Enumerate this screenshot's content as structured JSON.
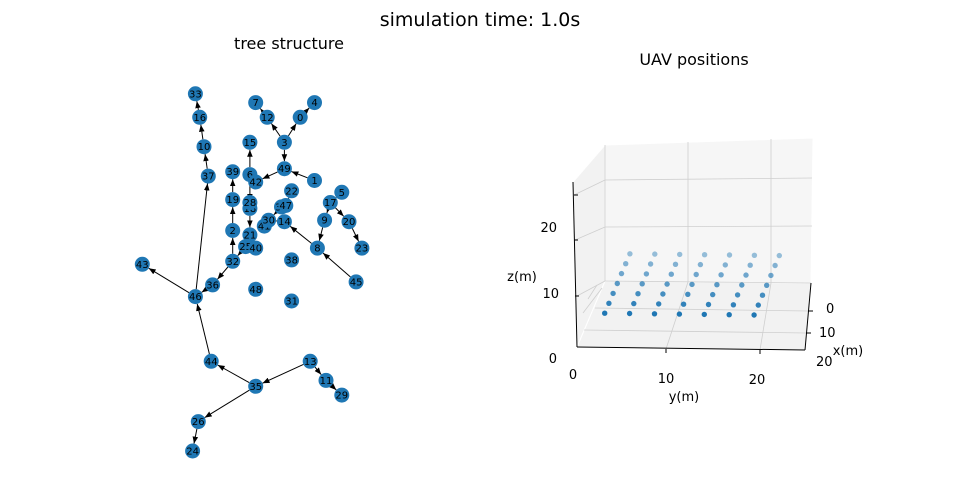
{
  "figure_title": "simulation time: 1.0s",
  "chart_data": [
    {
      "type": "network",
      "title": "tree structure",
      "node_color": "#1f77b4",
      "nodes": [
        {
          "id": "33",
          "x": -6.8,
          "y": 9.2
        },
        {
          "id": "16",
          "x": -6.5,
          "y": 7.6
        },
        {
          "id": "10",
          "x": -6.2,
          "y": 5.6
        },
        {
          "id": "37",
          "x": -5.9,
          "y": 3.6
        },
        {
          "id": "39",
          "x": -4.2,
          "y": 3.9
        },
        {
          "id": "19",
          "x": -4.2,
          "y": 2.0
        },
        {
          "id": "2",
          "x": -4.2,
          "y": -0.1
        },
        {
          "id": "32",
          "x": -4.2,
          "y": -2.2
        },
        {
          "id": "25",
          "x": -3.3,
          "y": -1.2
        },
        {
          "id": "21",
          "x": -3.0,
          "y": -0.4
        },
        {
          "id": "18",
          "x": -3.0,
          "y": 1.4
        },
        {
          "id": "28",
          "x": -3.0,
          "y": 1.8
        },
        {
          "id": "6",
          "x": -3.0,
          "y": 3.7
        },
        {
          "id": "15",
          "x": -3.0,
          "y": 5.9
        },
        {
          "id": "42",
          "x": -2.6,
          "y": 3.2
        },
        {
          "id": "40",
          "x": -2.6,
          "y": -1.3
        },
        {
          "id": "41",
          "x": -2.0,
          "y": 0.2
        },
        {
          "id": "30",
          "x": -1.7,
          "y": 0.6
        },
        {
          "id": "34",
          "x": -0.8,
          "y": 1.5
        },
        {
          "id": "47",
          "x": -0.5,
          "y": 1.6
        },
        {
          "id": "22",
          "x": -0.1,
          "y": 2.6
        },
        {
          "id": "14",
          "x": -0.6,
          "y": 0.5
        },
        {
          "id": "49",
          "x": -0.6,
          "y": 4.1
        },
        {
          "id": "3",
          "x": -0.6,
          "y": 5.9
        },
        {
          "id": "12",
          "x": -1.8,
          "y": 7.6
        },
        {
          "id": "0",
          "x": 0.5,
          "y": 7.6
        },
        {
          "id": "7",
          "x": -2.6,
          "y": 8.6
        },
        {
          "id": "4",
          "x": 1.5,
          "y": 8.6
        },
        {
          "id": "1",
          "x": 1.5,
          "y": 3.3
        },
        {
          "id": "5",
          "x": 3.4,
          "y": 2.5
        },
        {
          "id": "17",
          "x": 2.6,
          "y": 1.8
        },
        {
          "id": "9",
          "x": 2.2,
          "y": 0.6
        },
        {
          "id": "20",
          "x": 3.9,
          "y": 0.5
        },
        {
          "id": "8",
          "x": 1.7,
          "y": -1.3
        },
        {
          "id": "23",
          "x": 4.8,
          "y": -1.3
        },
        {
          "id": "45",
          "x": 4.4,
          "y": -3.6
        },
        {
          "id": "38",
          "x": -0.1,
          "y": -2.1
        },
        {
          "id": "48",
          "x": -2.6,
          "y": -4.1
        },
        {
          "id": "31",
          "x": -0.1,
          "y": -4.9
        },
        {
          "id": "43",
          "x": -10.5,
          "y": -2.4
        },
        {
          "id": "46",
          "x": -6.8,
          "y": -4.6
        },
        {
          "id": "36",
          "x": -5.6,
          "y": -3.8
        },
        {
          "id": "44",
          "x": -5.7,
          "y": -9.0
        },
        {
          "id": "35",
          "x": -2.6,
          "y": -10.7
        },
        {
          "id": "13",
          "x": 1.2,
          "y": -9.0
        },
        {
          "id": "11",
          "x": 2.3,
          "y": -10.3
        },
        {
          "id": "29",
          "x": 3.4,
          "y": -11.3
        },
        {
          "id": "26",
          "x": -6.6,
          "y": -13.1
        },
        {
          "id": "24",
          "x": -7.0,
          "y": -15.1
        }
      ],
      "edges": [
        [
          "16",
          "33"
        ],
        [
          "10",
          "16"
        ],
        [
          "37",
          "10"
        ],
        [
          "46",
          "37"
        ],
        [
          "46",
          "43"
        ],
        [
          "36",
          "46"
        ],
        [
          "44",
          "46"
        ],
        [
          "32",
          "36"
        ],
        [
          "35",
          "44"
        ],
        [
          "13",
          "35"
        ],
        [
          "35",
          "26"
        ],
        [
          "26",
          "24"
        ],
        [
          "13",
          "11"
        ],
        [
          "11",
          "29"
        ],
        [
          "19",
          "39"
        ],
        [
          "2",
          "19"
        ],
        [
          "32",
          "2"
        ],
        [
          "25",
          "32"
        ],
        [
          "21",
          "25"
        ],
        [
          "18",
          "21"
        ],
        [
          "6",
          "18"
        ],
        [
          "6",
          "15"
        ],
        [
          "49",
          "42"
        ],
        [
          "3",
          "49"
        ],
        [
          "3",
          "12"
        ],
        [
          "12",
          "7"
        ],
        [
          "3",
          "0"
        ],
        [
          "0",
          "4"
        ],
        [
          "1",
          "49"
        ],
        [
          "5",
          "17"
        ],
        [
          "17",
          "9"
        ],
        [
          "9",
          "8"
        ],
        [
          "45",
          "8"
        ],
        [
          "8",
          "14"
        ],
        [
          "14",
          "30"
        ],
        [
          "47",
          "34"
        ],
        [
          "34",
          "30"
        ],
        [
          "30",
          "41"
        ],
        [
          "22",
          "47"
        ],
        [
          "17",
          "20"
        ],
        [
          "20",
          "23"
        ]
      ]
    },
    {
      "type": "scatter3d",
      "title": "UAV positions",
      "xlabel": "x(m)",
      "ylabel": "y(m)",
      "zlabel": "z(m)",
      "xlim": [
        0,
        20
      ],
      "ylim": [
        0,
        25
      ],
      "zlim": [
        0,
        25
      ],
      "xticks": [
        "0",
        "10",
        "20"
      ],
      "yticks": [
        "0",
        "10",
        "20"
      ],
      "zticks": [
        "0",
        "10",
        "20"
      ],
      "point_color": "#1f77b4",
      "grid": {
        "xs": [
          0,
          3,
          6,
          9,
          12,
          15,
          18
        ],
        "ys": [
          3,
          6,
          9,
          12,
          15,
          18,
          21
        ],
        "z": 5
      }
    }
  ]
}
